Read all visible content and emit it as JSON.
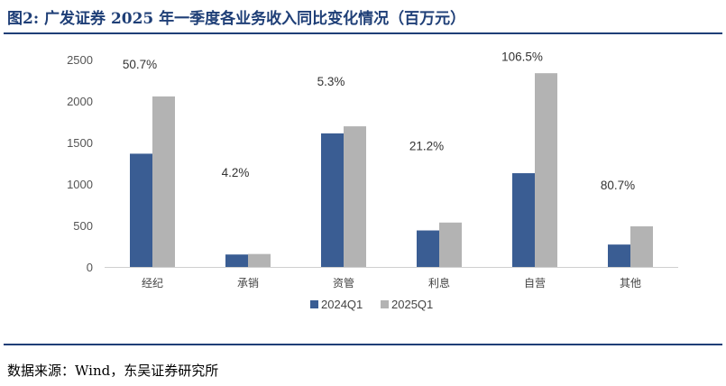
{
  "header": {
    "title": "图2:  广发证券 2025 年一季度各业务收入同比变化情况（百万元）"
  },
  "footer": {
    "source": "数据来源：Wind，东吴证券研究所"
  },
  "colors": {
    "series_2024": "#3a5d93",
    "series_2025": "#b3b3b3",
    "rule": "#1f3f77"
  },
  "chart_data": {
    "type": "bar",
    "categories": [
      "经纪",
      "承销",
      "资管",
      "利息",
      "自营",
      "其他"
    ],
    "series": [
      {
        "name": "2024Q1",
        "values": [
          1365,
          150,
          1610,
          440,
          1130,
          270
        ]
      },
      {
        "name": "2025Q1",
        "values": [
          2055,
          156,
          1695,
          535,
          2335,
          490
        ]
      }
    ],
    "annotations": [
      "50.7%",
      "4.2%",
      "5.3%",
      "21.2%",
      "106.5%",
      "80.7%"
    ],
    "annotation_values": [
      2500,
      1195,
      2295,
      1515,
      2590,
      1045
    ],
    "yticks": [
      "0",
      "500",
      "1000",
      "1500",
      "2000",
      "2500"
    ],
    "ylim": [
      0,
      2500
    ],
    "legend_position": "bottom-center",
    "grid": false
  }
}
